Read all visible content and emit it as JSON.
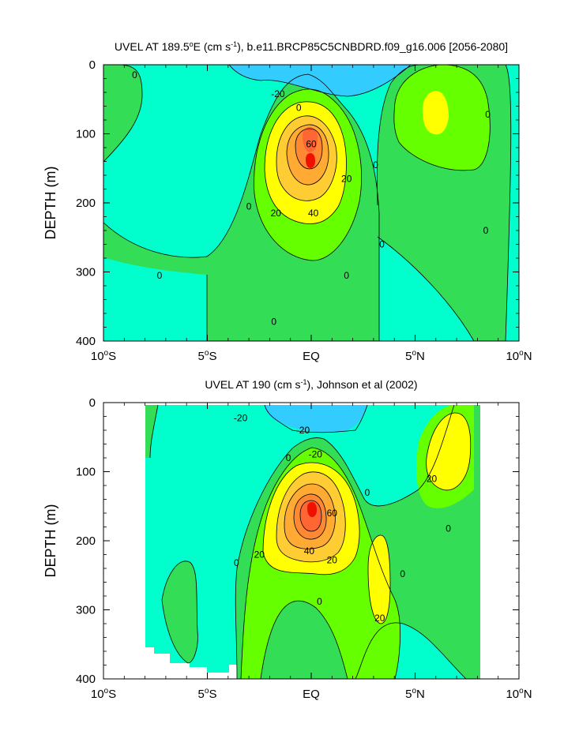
{
  "figure": {
    "palette": {
      "minus40": "#33ccff",
      "minus20": "#00ffcc",
      "zero": "#00ee99",
      "p0": "#33dd55",
      "p10": "#66ff00",
      "p20": "#ffff00",
      "p30": "#ffcc33",
      "p40": "#ffaa33",
      "p50": "#ff8833",
      "p60": "#ff6633",
      "p70": "#ee1100",
      "line": "#000000",
      "mask": "#ffffff"
    }
  },
  "chart_data": [
    {
      "type": "heatmap",
      "subtype": "filled-contour",
      "title": "UVEL AT 189.5°E (cm s-1), b.e11.BRCP85C5CNBDRD.f09_g16.006 [2056-2080]",
      "title_parts": {
        "pre": "UVEL AT 189.5",
        "deg": "o",
        "mid": "E (cm s",
        "sup": "-1",
        "post": "), b.e11.BRCP85C5CNBDRD.f09_g16.006 [2056-2080]"
      },
      "xlabel": "",
      "ylabel": "DEPTH (m)",
      "xlim": [
        -10,
        10
      ],
      "ylim": [
        400,
        0
      ],
      "x_ticks": [
        {
          "value": -10,
          "num": "10",
          "deg": "o",
          "hem": "S"
        },
        {
          "value": -5,
          "num": "5",
          "deg": "o",
          "hem": "S"
        },
        {
          "value": 0,
          "num": "EQ",
          "deg": "",
          "hem": ""
        },
        {
          "value": 5,
          "num": "5",
          "deg": "o",
          "hem": "N"
        },
        {
          "value": 10,
          "num": "10",
          "deg": "o",
          "hem": "N"
        }
      ],
      "y_ticks": [
        0,
        100,
        200,
        300,
        400
      ],
      "contour_interval": 10,
      "units": "cm s-1",
      "contour_labels": [
        {
          "text": "0",
          "lat": -8.5,
          "depth": 15
        },
        {
          "text": "-20",
          "lat": -1.6,
          "depth": 42
        },
        {
          "text": "0",
          "lat": -0.6,
          "depth": 62
        },
        {
          "text": "60",
          "lat": 0.0,
          "depth": 115
        },
        {
          "text": "20",
          "lat": 1.7,
          "depth": 165
        },
        {
          "text": "0",
          "lat": 3.1,
          "depth": 145
        },
        {
          "text": "0",
          "lat": -3.0,
          "depth": 205
        },
        {
          "text": "20",
          "lat": -1.7,
          "depth": 215
        },
        {
          "text": "40",
          "lat": 0.1,
          "depth": 215
        },
        {
          "text": "0",
          "lat": 3.4,
          "depth": 260
        },
        {
          "text": "0",
          "lat": 1.7,
          "depth": 305
        },
        {
          "text": "0",
          "lat": -7.3,
          "depth": 305
        },
        {
          "text": "0",
          "lat": -1.8,
          "depth": 372
        },
        {
          "text": "0",
          "lat": 8.5,
          "depth": 72
        },
        {
          "text": "0",
          "lat": 8.4,
          "depth": 240
        }
      ]
    },
    {
      "type": "heatmap",
      "subtype": "filled-contour",
      "title": "UVEL AT 190 (cm s-1), Johnson et al (2002)",
      "title_parts": {
        "pre": "UVEL AT 190 (cm s",
        "sup": "-1",
        "post": "), Johnson et al (2002)"
      },
      "xlabel": "",
      "ylabel": "DEPTH (m)",
      "xlim": [
        -10,
        10
      ],
      "ylim": [
        400,
        0
      ],
      "x_ticks": [
        {
          "value": -10,
          "num": "10",
          "deg": "o",
          "hem": "S"
        },
        {
          "value": -5,
          "num": "5",
          "deg": "o",
          "hem": "S"
        },
        {
          "value": 0,
          "num": "EQ",
          "deg": "",
          "hem": ""
        },
        {
          "value": 5,
          "num": "5",
          "deg": "o",
          "hem": "N"
        },
        {
          "value": 10,
          "num": "10",
          "deg": "o",
          "hem": "N"
        }
      ],
      "y_ticks": [
        0,
        100,
        200,
        300,
        400
      ],
      "contour_interval": 10,
      "units": "cm s-1",
      "data_lat_range": [
        -8,
        8
      ],
      "contour_labels": [
        {
          "text": "-20",
          "lat": -3.4,
          "depth": 22
        },
        {
          "text": "-20",
          "lat": -0.4,
          "depth": 40
        },
        {
          "text": "-20",
          "lat": 0.2,
          "depth": 75
        },
        {
          "text": "0",
          "lat": -1.1,
          "depth": 80
        },
        {
          "text": "60",
          "lat": 1.0,
          "depth": 160
        },
        {
          "text": "20",
          "lat": 5.8,
          "depth": 110
        },
        {
          "text": "0",
          "lat": 2.7,
          "depth": 130
        },
        {
          "text": "0",
          "lat": 6.6,
          "depth": 182
        },
        {
          "text": "20",
          "lat": -2.5,
          "depth": 220
        },
        {
          "text": "40",
          "lat": -0.1,
          "depth": 215
        },
        {
          "text": "20",
          "lat": 1.0,
          "depth": 228
        },
        {
          "text": "0",
          "lat": -3.6,
          "depth": 232
        },
        {
          "text": "0",
          "lat": 4.4,
          "depth": 248
        },
        {
          "text": "0",
          "lat": 0.4,
          "depth": 288
        },
        {
          "text": "20",
          "lat": 3.3,
          "depth": 312
        }
      ]
    }
  ]
}
